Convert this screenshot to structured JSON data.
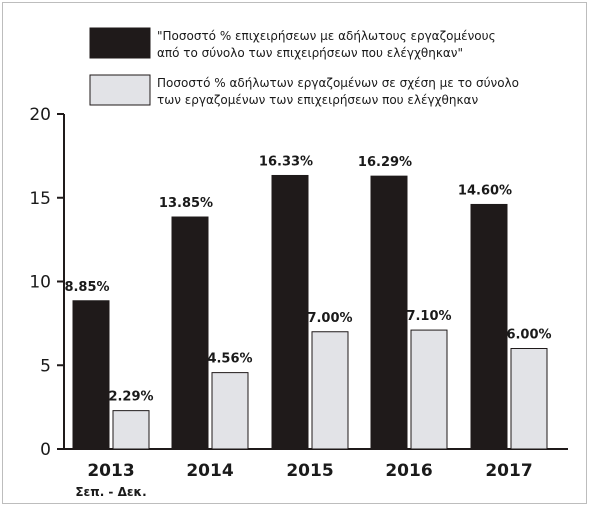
{
  "chart_data": {
    "type": "bar",
    "categories": [
      "2013",
      "2014",
      "2015",
      "2016",
      "2017"
    ],
    "category_sublabels": [
      "Σεπ. - Δεκ.",
      "",
      "",
      "",
      ""
    ],
    "series": [
      {
        "name_lines": [
          "\"Ποσοστό % επιχειρήσεων με αδήλωτους εργαζομένους",
          "από το σύνολο των επιχειρήσεων που ελέγχθηκαν\""
        ],
        "values": [
          8.85,
          13.85,
          16.33,
          16.29,
          14.6
        ],
        "labels": [
          "8.85%",
          "13.85%",
          "16.33%",
          "16.29%",
          "14.60%"
        ],
        "color": "#1f1a1a"
      },
      {
        "name_lines": [
          "Ποσοστό % αδήλωτων εργαζομένων σε σχέση με το σύνολο",
          "των εργαζομένων των επιχειρήσεων που ελέγχθηκαν"
        ],
        "values": [
          2.29,
          4.56,
          7.0,
          7.1,
          6.0
        ],
        "labels": [
          "2.29%",
          "4.56%",
          "7.00%",
          "7.10%",
          "6.00%"
        ],
        "color": "#e2e3e7"
      }
    ],
    "yticks": [
      "0",
      "5",
      "10",
      "15",
      "20"
    ],
    "ylim": [
      0,
      20
    ],
    "grid": false,
    "legend_position": "top-right"
  }
}
